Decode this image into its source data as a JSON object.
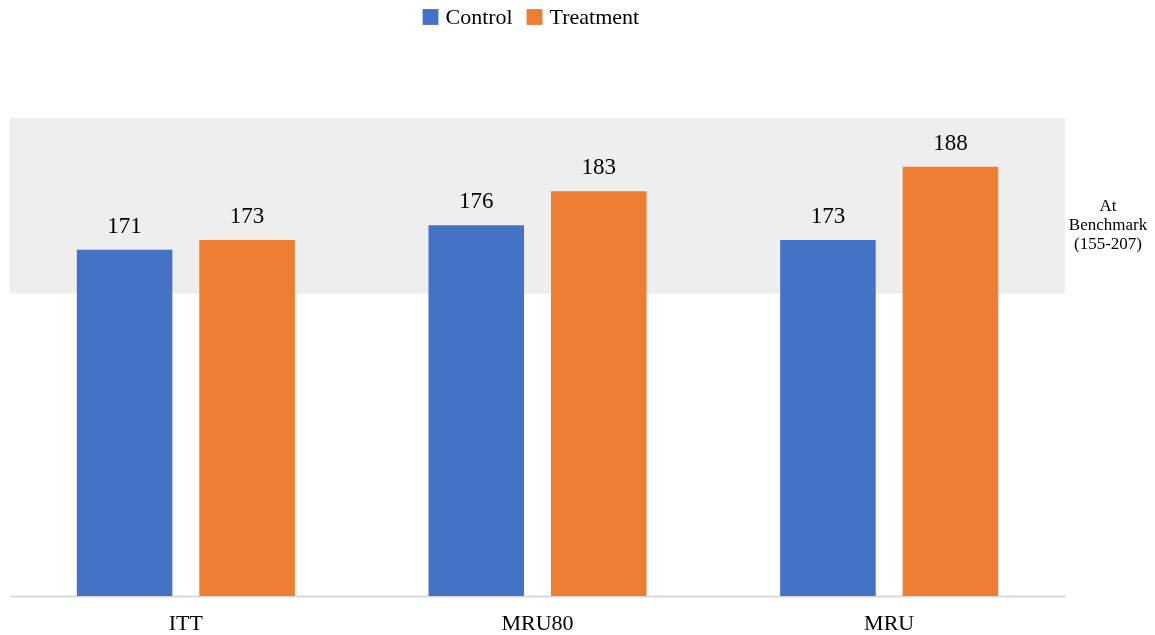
{
  "chart_data": {
    "type": "bar",
    "categories": [
      "ITT",
      "MRU80",
      "MRU"
    ],
    "series": [
      {
        "name": "Control",
        "color": "#4472c4",
        "values": [
          171,
          176,
          173
        ]
      },
      {
        "name": "Treatment",
        "color": "#ed7d31",
        "values": [
          173,
          183,
          188
        ]
      }
    ],
    "ylim": [
      100,
      198
    ],
    "tick_labels": "x",
    "data_labels": true,
    "legend": "top",
    "bands": [
      {
        "axis": "y",
        "from": 162,
        "to": 198,
        "label": "At Benchmark (155-207)",
        "color": "#eeeeee"
      }
    ]
  }
}
